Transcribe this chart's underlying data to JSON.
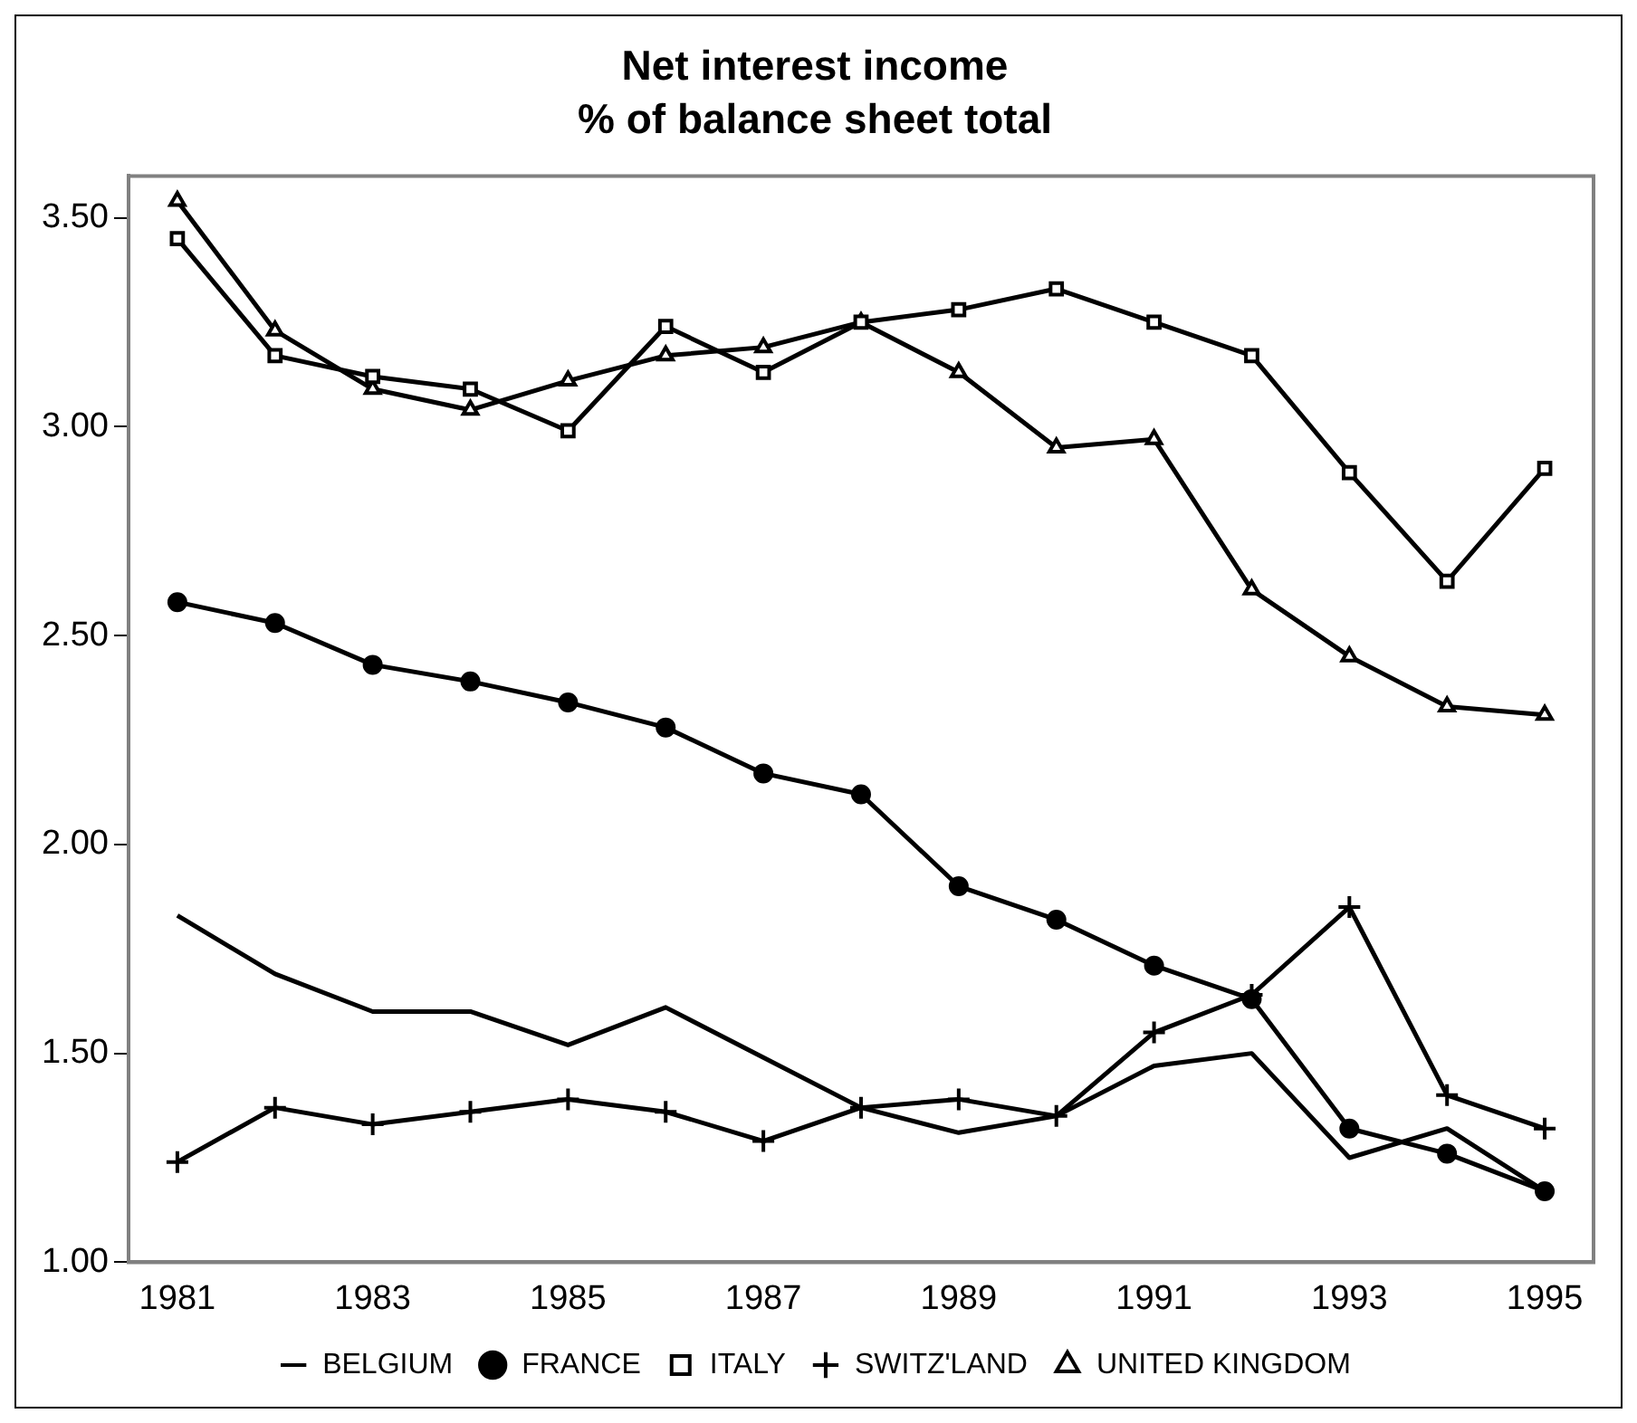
{
  "chart_data": {
    "type": "line",
    "title": "Net interest income",
    "subtitle": "% of balance sheet total",
    "categories": [
      "1981",
      null,
      "1983",
      null,
      "1985",
      null,
      "1987",
      null,
      "1989",
      null,
      "1991",
      null,
      "1993",
      null,
      "1995"
    ],
    "series": [
      {
        "name": "BELGIUM",
        "color": "#000000",
        "marker": "none",
        "values": [
          1.83,
          1.69,
          1.6,
          1.6,
          1.52,
          1.61,
          1.49,
          1.37,
          1.31,
          1.35,
          1.47,
          1.5,
          1.25,
          1.32,
          1.17
        ]
      },
      {
        "name": "FRANCE",
        "color": "#000000",
        "marker": "circle",
        "values": [
          2.58,
          2.53,
          2.43,
          2.39,
          2.34,
          2.28,
          2.17,
          2.12,
          1.9,
          1.82,
          1.71,
          1.63,
          1.32,
          1.26,
          1.17
        ]
      },
      {
        "name": "ITALY",
        "color": "#000000",
        "marker": "square",
        "values": [
          3.45,
          3.17,
          3.12,
          3.09,
          2.99,
          3.24,
          3.13,
          3.25,
          3.28,
          3.33,
          3.25,
          3.17,
          2.89,
          2.63,
          2.9
        ]
      },
      {
        "name": "SWITZ'LAND",
        "color": "#000000",
        "marker": "cross",
        "values": [
          1.24,
          1.37,
          1.33,
          1.36,
          1.39,
          1.36,
          1.29,
          1.37,
          1.39,
          1.35,
          1.55,
          1.64,
          1.85,
          1.4,
          1.32
        ]
      },
      {
        "name": "UNITED KINGDOM",
        "color": "#000000",
        "marker": "triangle",
        "values": [
          3.54,
          3.23,
          3.09,
          3.04,
          3.11,
          3.17,
          3.19,
          3.25,
          3.13,
          2.95,
          2.97,
          2.61,
          2.45,
          2.33,
          2.31
        ]
      }
    ],
    "ylim": [
      1,
      3.6
    ],
    "yticks": [
      {
        "value": 1,
        "label": "1.00"
      },
      {
        "value": 1.5,
        "label": "1.50"
      },
      {
        "value": 2,
        "label": "2.00"
      },
      {
        "value": 2.5,
        "label": "2.50"
      },
      {
        "value": 3,
        "label": "3.00"
      },
      {
        "value": 3.5,
        "label": "3.50"
      }
    ],
    "grid": false,
    "legend": "bottom",
    "line_style": "solid"
  }
}
